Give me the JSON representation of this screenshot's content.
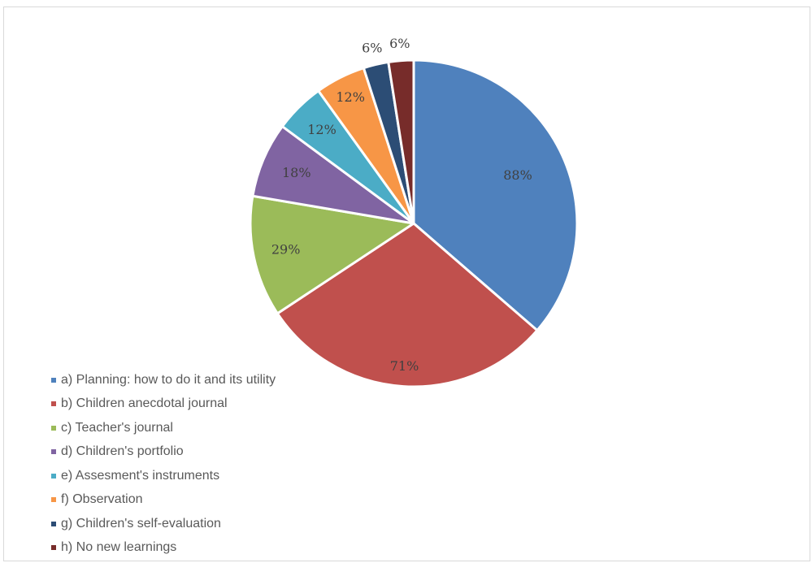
{
  "chart_data": {
    "type": "pie",
    "title": "",
    "categories": [
      "a) Planning: how to do it and its utility",
      "b) Children anecdotal journal",
      "c) Teacher's journal",
      "d) Children's portfolio",
      "e) Assesment's instruments",
      "f) Observation",
      "g) Children's self-evaluation",
      "h) No new learnings"
    ],
    "values": [
      88,
      71,
      29,
      18,
      12,
      12,
      6,
      6
    ],
    "data_labels": [
      "88%",
      "71%",
      "29%",
      "18%",
      "12%",
      "12%",
      "6%",
      "6%"
    ],
    "colors": [
      "#4F81BD",
      "#C0504D",
      "#9BBB59",
      "#8064A2",
      "#4BACC6",
      "#F79646",
      "#2C4D75",
      "#772C2A"
    ],
    "legend_position": "left"
  }
}
